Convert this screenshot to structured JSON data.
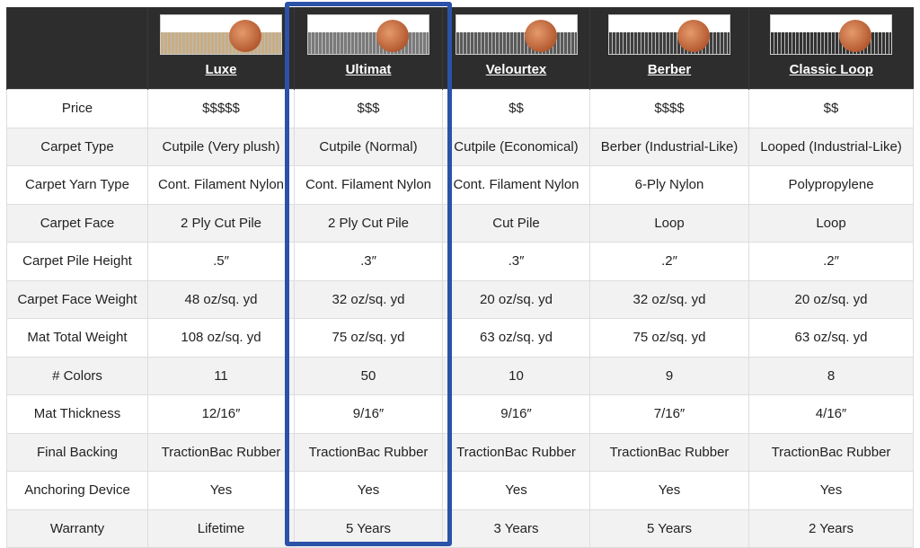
{
  "products": [
    {
      "name": "Luxe",
      "pile_color": "#c9ad82"
    },
    {
      "name": "Ultimat",
      "pile_color": "#7a7a7a"
    },
    {
      "name": "Velourtex",
      "pile_color": "#5a5a5a"
    },
    {
      "name": "Berber",
      "pile_color": "#3e3e3e"
    },
    {
      "name": "Classic Loop",
      "pile_color": "#333333"
    }
  ],
  "highlight_color": "#2a52a8",
  "rows": [
    {
      "label": "Price",
      "values": [
        "$$$$$",
        "$$$",
        "$$",
        "$$$$",
        "$$"
      ]
    },
    {
      "label": "Carpet Type",
      "values": [
        "Cutpile (Very plush)",
        "Cutpile (Normal)",
        "Cutpile (Economical)",
        "Berber (Industrial-Like)",
        "Looped (Industrial-Like)"
      ]
    },
    {
      "label": "Carpet Yarn Type",
      "values": [
        "Cont. Filament Nylon",
        "Cont. Filament Nylon",
        "Cont. Filament Nylon",
        "6-Ply Nylon",
        "Polypropylene"
      ]
    },
    {
      "label": "Carpet Face",
      "values": [
        "2 Ply Cut Pile",
        "2 Ply Cut Pile",
        "Cut Pile",
        "Loop",
        "Loop"
      ]
    },
    {
      "label": "Carpet Pile Height",
      "values": [
        ".5″",
        ".3″",
        ".3″",
        ".2″",
        ".2″"
      ]
    },
    {
      "label": "Carpet Face Weight",
      "values": [
        "48 oz/sq. yd",
        "32 oz/sq. yd",
        "20 oz/sq. yd",
        "32 oz/sq. yd",
        "20 oz/sq. yd"
      ]
    },
    {
      "label": "Mat Total Weight",
      "values": [
        "108 oz/sq. yd",
        "75 oz/sq. yd",
        "63 oz/sq. yd",
        "75 oz/sq. yd",
        "63 oz/sq. yd"
      ]
    },
    {
      "label": "# Colors",
      "values": [
        "11",
        "50",
        "10",
        "9",
        "8"
      ]
    },
    {
      "label": "Mat Thickness",
      "values": [
        "12/16″",
        "9/16″",
        "9/16″",
        "7/16″",
        "4/16″"
      ]
    },
    {
      "label": "Final Backing",
      "values": [
        "TractionBac Rubber",
        "TractionBac Rubber",
        "TractionBac Rubber",
        "TractionBac Rubber",
        "TractionBac Rubber"
      ]
    },
    {
      "label": "Anchoring Device",
      "values": [
        "Yes",
        "Yes",
        "Yes",
        "Yes",
        "Yes"
      ]
    },
    {
      "label": "Warranty",
      "values": [
        "Lifetime",
        "5 Years",
        "3 Years",
        "5 Years",
        "2 Years"
      ]
    }
  ]
}
